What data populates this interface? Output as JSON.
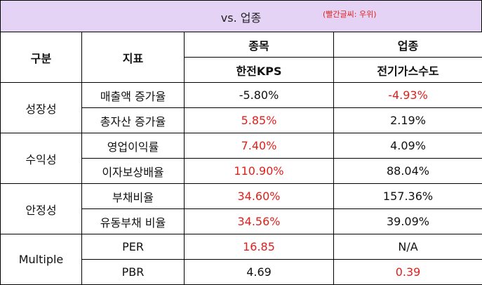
{
  "header": {
    "title": "vs. 업종",
    "note": "(빨간글씨:  우위)"
  },
  "table": {
    "col_group_label": "구분",
    "col_metric_label": "지표",
    "col_stock_label": "종목",
    "col_stock_name": "한전KPS",
    "col_industry_label": "업종",
    "col_industry_name": "전기가스수도",
    "groups": [
      {
        "name": "성장성",
        "rows": [
          {
            "metric": "매출액 증가율",
            "stock": "-5.80%",
            "industry": "-4.93%",
            "stock_red": false,
            "industry_red": true
          },
          {
            "metric": "총자산 증가율",
            "stock": "5.85%",
            "industry": "2.19%",
            "stock_red": true,
            "industry_red": false
          }
        ]
      },
      {
        "name": "수익성",
        "rows": [
          {
            "metric": "영업이익률",
            "stock": "7.40%",
            "industry": "4.09%",
            "stock_red": true,
            "industry_red": false
          },
          {
            "metric": "이자보상배율",
            "stock": "110.90%",
            "industry": "88.04%",
            "stock_red": true,
            "industry_red": false
          }
        ]
      },
      {
        "name": "안정성",
        "rows": [
          {
            "metric": "부채비율",
            "stock": "34.60%",
            "industry": "157.36%",
            "stock_red": true,
            "industry_red": false
          },
          {
            "metric": "유동부채 비율",
            "stock": "34.56%",
            "industry": "39.09%",
            "stock_red": true,
            "industry_red": false
          }
        ]
      },
      {
        "name": "Multiple",
        "rows": [
          {
            "metric": "PER",
            "stock": "16.85",
            "industry": "N/A",
            "stock_red": true,
            "industry_red": false
          },
          {
            "metric": "PBR",
            "stock": "4.69",
            "industry": "0.39",
            "stock_red": false,
            "industry_red": true
          }
        ]
      }
    ]
  },
  "colors": {
    "header_bg": "#e5d3f6",
    "advantage_red": "#e0201c"
  }
}
